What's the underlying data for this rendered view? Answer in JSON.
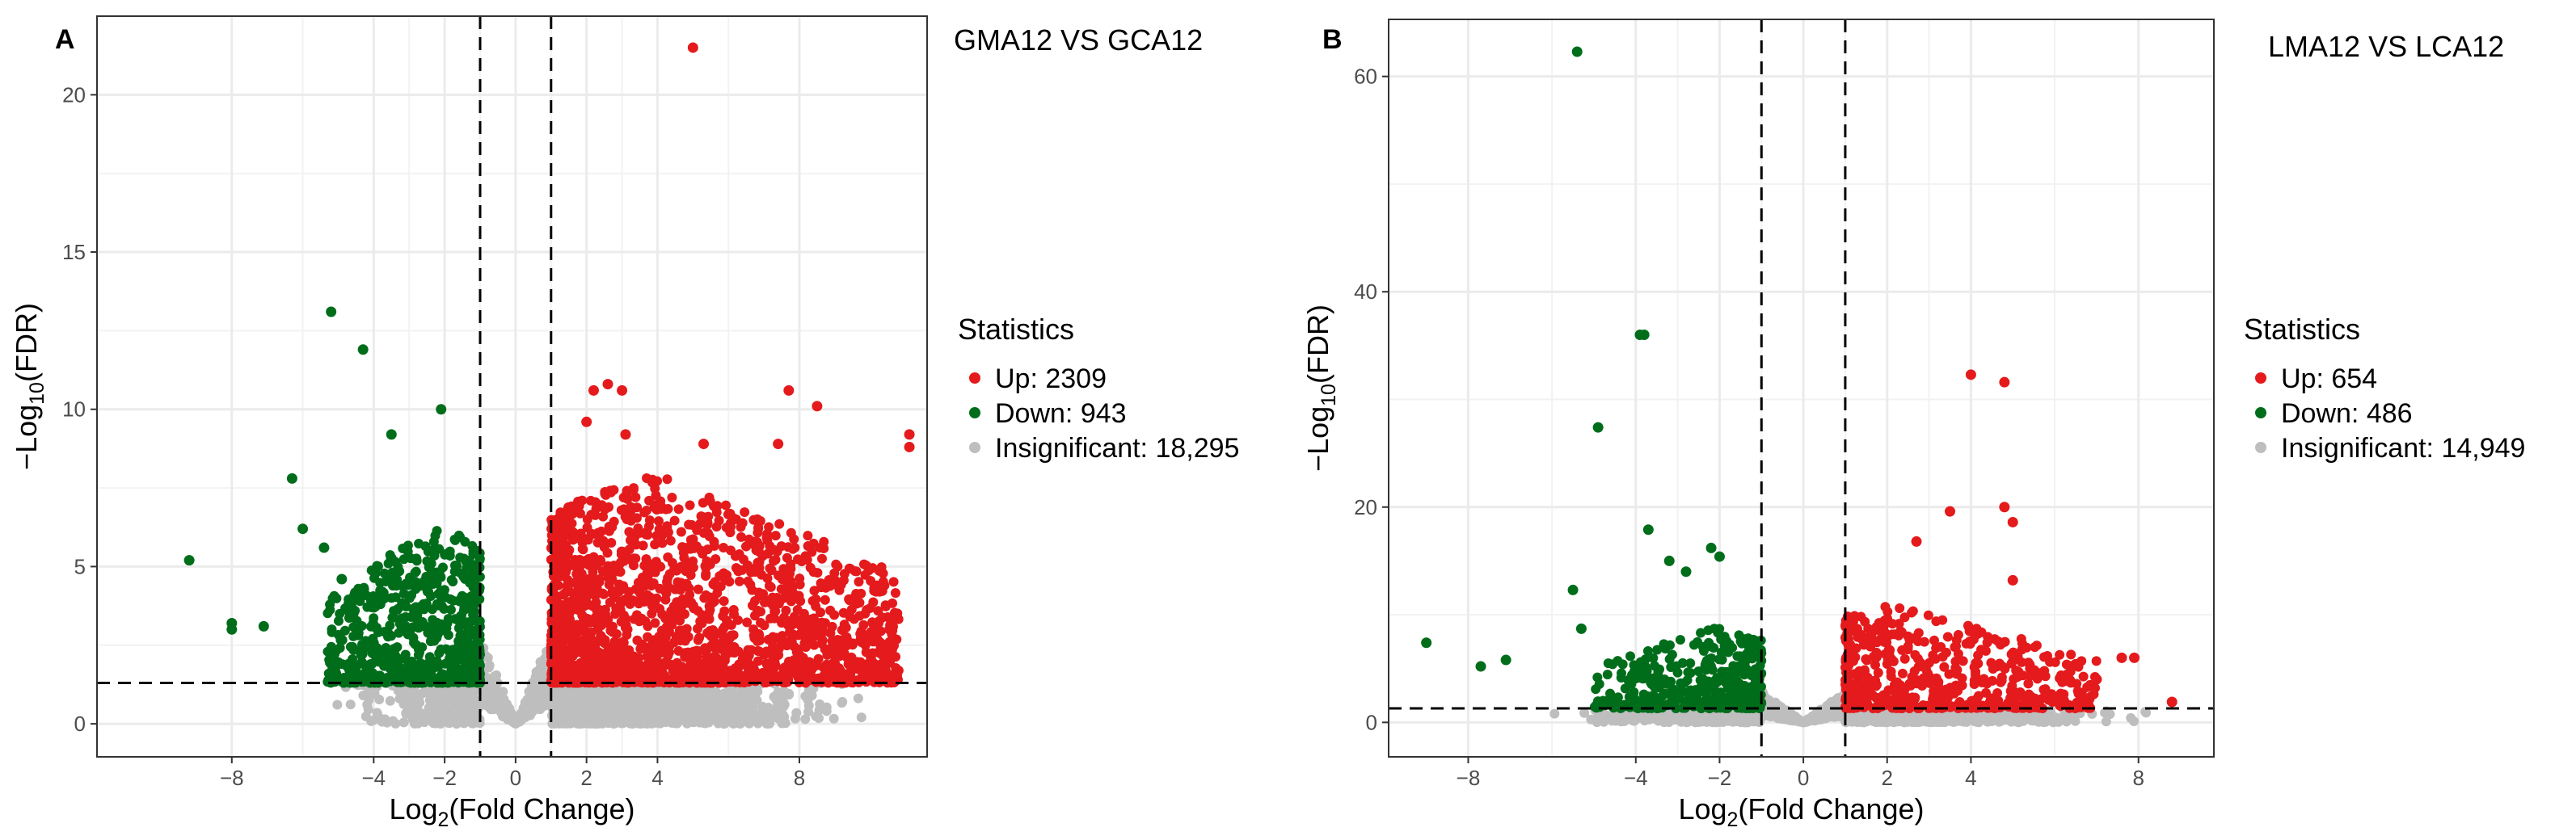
{
  "chart_data": [
    {
      "panel_label": "A",
      "type": "scatter",
      "title": "GMA12 VS GCA12",
      "xlabel": {
        "main": "Log",
        "sub": "2",
        "rest": "(Fold Change)"
      },
      "ylabel": {
        "main": "−Log",
        "sub": "10",
        "rest": "(FDR)"
      },
      "xlim": [
        -11.8,
        11.6
      ],
      "ylim": [
        -1.05,
        22.5
      ],
      "xticks": [
        -8,
        -4,
        -2,
        0,
        2,
        4,
        8
      ],
      "xtick_labels": [
        "−8",
        "−4",
        "−2",
        "0",
        "2",
        "4",
        "8"
      ],
      "yticks": [
        0,
        5,
        10,
        15,
        20
      ],
      "ytick_labels": [
        "0",
        "5",
        "10",
        "15",
        "20"
      ],
      "fc_thresholds": [
        -1,
        1
      ],
      "fdr_threshold": 1.3,
      "legend": {
        "title": "Statistics",
        "entries": [
          {
            "label": "Up: 2309",
            "color": "#e41a1c"
          },
          {
            "label": "Down: 943",
            "color": "#006d1b"
          },
          {
            "label": "Insignificant: 18,295",
            "color": "#bebebe"
          }
        ]
      },
      "series": [
        {
          "name": "Up",
          "color": "#e41a1c",
          "notable_points": [
            [
              5.0,
              21.5
            ],
            [
              2.2,
              10.6
            ],
            [
              2.6,
              10.8
            ],
            [
              3.0,
              10.6
            ],
            [
              7.7,
              10.6
            ],
            [
              8.5,
              10.1
            ],
            [
              11.1,
              9.2
            ],
            [
              11.1,
              8.8
            ],
            [
              2.0,
              9.6
            ],
            [
              3.1,
              9.2
            ],
            [
              5.3,
              8.9
            ],
            [
              7.4,
              8.9
            ],
            [
              10.5,
              2.4
            ],
            [
              9.0,
              1.9
            ]
          ],
          "bulk": {
            "x_range": [
              1.0,
              10.8
            ],
            "peak_x": 3.8,
            "max_y": 8.0,
            "count": 1900
          }
        },
        {
          "name": "Down",
          "color": "#006d1b",
          "notable_points": [
            [
              -5.2,
              13.1
            ],
            [
              -4.3,
              11.9
            ],
            [
              -2.1,
              10.0
            ],
            [
              -3.5,
              9.2
            ],
            [
              -9.2,
              5.2
            ],
            [
              -8.0,
              3.2
            ],
            [
              -8.0,
              3.0
            ],
            [
              -7.1,
              3.1
            ],
            [
              -6.3,
              7.8
            ],
            [
              -6.0,
              6.2
            ],
            [
              -5.4,
              5.6
            ],
            [
              -4.9,
              4.6
            ],
            [
              -3.7,
              4.0
            ]
          ],
          "bulk": {
            "x_range": [
              -5.3,
              -1.0
            ],
            "peak_x": -2.2,
            "max_y": 6.5,
            "count": 720
          }
        },
        {
          "name": "Insignificant",
          "color": "#bebebe",
          "bulk": {
            "x_range": [
              -6.0,
              10.6
            ],
            "max_y": 1.3,
            "count": 1600
          }
        }
      ]
    },
    {
      "panel_label": "B",
      "type": "scatter",
      "title": "LMA12 VS  LCA12",
      "xlabel": {
        "main": "Log",
        "sub": "2",
        "rest": "(Fold Change)"
      },
      "ylabel": {
        "main": "−Log",
        "sub": "10",
        "rest": "(FDR)"
      },
      "xlim": [
        -9.9,
        9.8
      ],
      "ylim": [
        -3.2,
        65.3
      ],
      "xticks": [
        -8,
        -4,
        -2,
        0,
        2,
        4,
        8
      ],
      "xtick_labels": [
        "−8",
        "−4",
        "−2",
        "0",
        "2",
        "4",
        "8"
      ],
      "yticks": [
        0,
        20,
        40,
        60
      ],
      "ytick_labels": [
        "0",
        "20",
        "40",
        "60"
      ],
      "fc_thresholds": [
        -1,
        1
      ],
      "fdr_threshold": 1.3,
      "legend": {
        "title": "Statistics",
        "entries": [
          {
            "label": "Up: 654",
            "color": "#e41a1c"
          },
          {
            "label": "Down: 486",
            "color": "#006d1b"
          },
          {
            "label": "Insignificant: 14,949",
            "color": "#bebebe"
          }
        ]
      },
      "series": [
        {
          "name": "Up",
          "color": "#e41a1c",
          "notable_points": [
            [
              4.0,
              32.3
            ],
            [
              4.8,
              31.6
            ],
            [
              4.8,
              20.0
            ],
            [
              5.0,
              18.6
            ],
            [
              3.5,
              19.6
            ],
            [
              2.7,
              16.8
            ],
            [
              5.0,
              13.2
            ],
            [
              6.5,
              5.4
            ],
            [
              7.6,
              6.0
            ],
            [
              7.9,
              6.0
            ],
            [
              8.8,
              1.9
            ],
            [
              7.0,
              4.0
            ]
          ],
          "bulk": {
            "x_range": [
              1.0,
              7.0
            ],
            "peak_x": 2.0,
            "max_y": 11.0,
            "count": 560
          }
        },
        {
          "name": "Down",
          "color": "#006d1b",
          "notable_points": [
            [
              -5.4,
              62.3
            ],
            [
              -3.9,
              36.0
            ],
            [
              -3.8,
              36.0
            ],
            [
              -4.9,
              27.4
            ],
            [
              -3.7,
              17.9
            ],
            [
              -2.2,
              16.2
            ],
            [
              -2.0,
              15.4
            ],
            [
              -3.2,
              15.0
            ],
            [
              -2.8,
              14.0
            ],
            [
              -5.5,
              12.3
            ],
            [
              -5.3,
              8.7
            ],
            [
              -9.0,
              7.4
            ],
            [
              -7.7,
              5.2
            ],
            [
              -7.1,
              5.8
            ]
          ],
          "bulk": {
            "x_range": [
              -5.0,
              -1.0
            ],
            "peak_x": -2.0,
            "max_y": 9.0,
            "count": 420
          }
        },
        {
          "name": "Insignificant",
          "color": "#bebebe",
          "bulk": {
            "x_range": [
              -6.5,
              8.5
            ],
            "max_y": 1.3,
            "count": 1300
          }
        }
      ]
    }
  ]
}
